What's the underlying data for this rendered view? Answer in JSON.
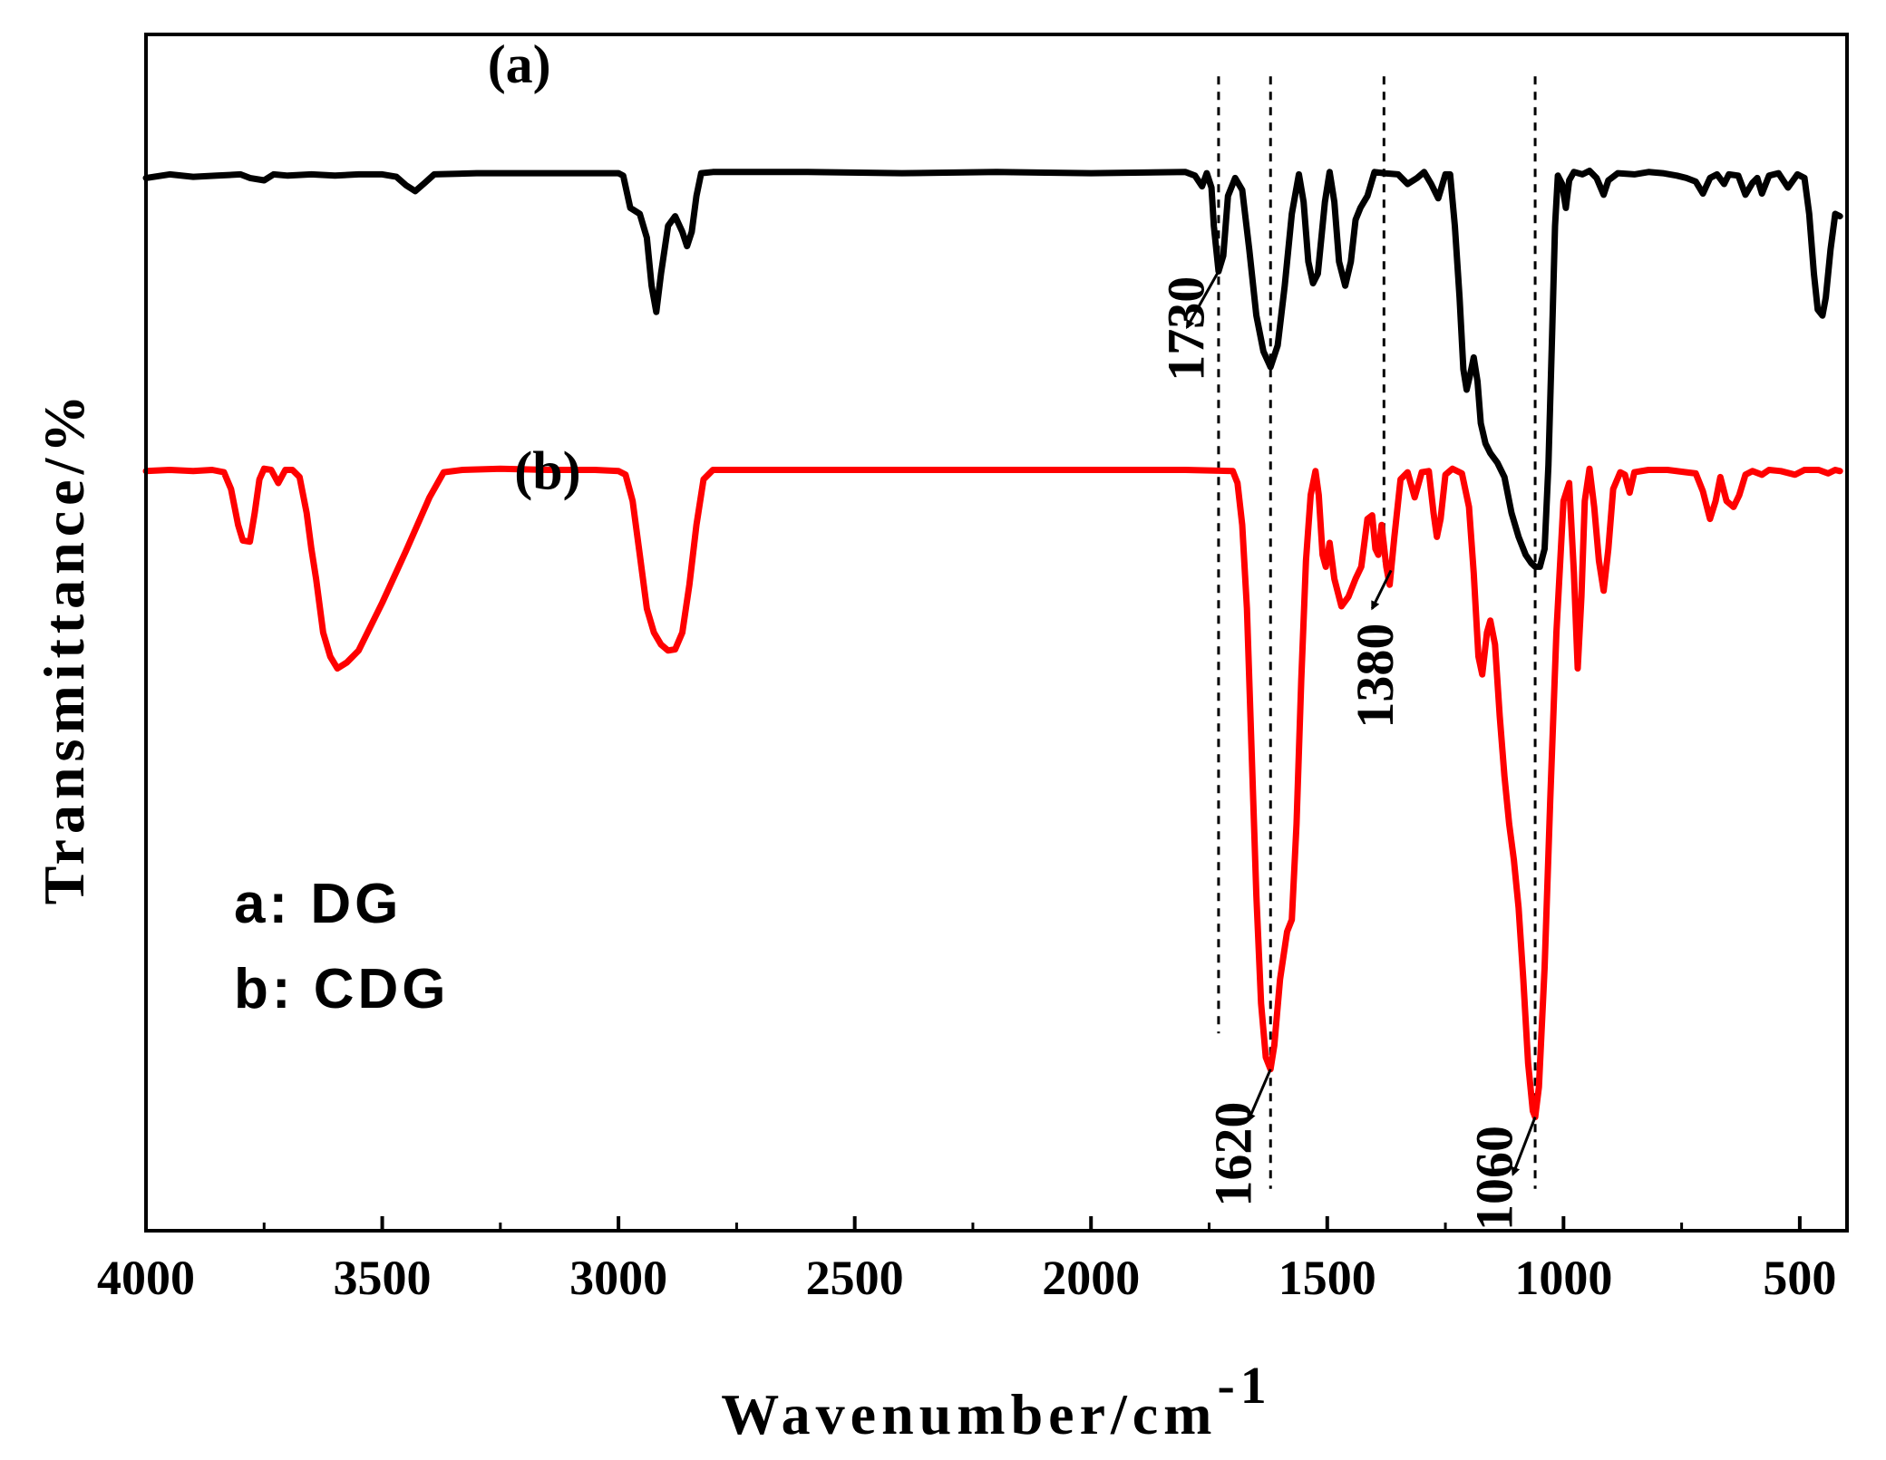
{
  "chart_data": {
    "type": "line",
    "title": "",
    "xlabel": "Wavenumber/cm",
    "xlabel_superscript": "-1",
    "ylabel": "Transmittance/%",
    "xlim": [
      4000,
      400
    ],
    "x_reversed": true,
    "ylim": [
      0,
      100
    ],
    "x_ticks": [
      4000,
      3500,
      3000,
      2500,
      2000,
      1500,
      1000,
      500
    ],
    "y_ticks": [],
    "grid": false,
    "legend": [
      {
        "text": "a: DG"
      },
      {
        "text": "b: CDG"
      }
    ],
    "legend_position": "bottom-left",
    "curve_labels": [
      {
        "text": "(a)",
        "x": 3210,
        "y": 96
      },
      {
        "text": "(b)",
        "x": 3150,
        "y": 62
      }
    ],
    "series": [
      {
        "name": "a",
        "color": "#000000",
        "points": [
          [
            4000,
            88
          ],
          [
            3950,
            88.3
          ],
          [
            3900,
            88.1
          ],
          [
            3850,
            88.2
          ],
          [
            3800,
            88.3
          ],
          [
            3780,
            88
          ],
          [
            3750,
            87.8
          ],
          [
            3730,
            88.3
          ],
          [
            3700,
            88.2
          ],
          [
            3650,
            88.3
          ],
          [
            3600,
            88.2
          ],
          [
            3550,
            88.3
          ],
          [
            3500,
            88.3
          ],
          [
            3470,
            88.1
          ],
          [
            3450,
            87.4
          ],
          [
            3430,
            86.9
          ],
          [
            3410,
            87.6
          ],
          [
            3390,
            88.3
          ],
          [
            3300,
            88.4
          ],
          [
            3100,
            88.4
          ],
          [
            3000,
            88.4
          ],
          [
            2990,
            88.2
          ],
          [
            2975,
            85.5
          ],
          [
            2955,
            85
          ],
          [
            2940,
            83
          ],
          [
            2930,
            79
          ],
          [
            2920,
            76.8
          ],
          [
            2910,
            80
          ],
          [
            2895,
            84
          ],
          [
            2880,
            84.8
          ],
          [
            2865,
            83.5
          ],
          [
            2855,
            82.3
          ],
          [
            2845,
            83.5
          ],
          [
            2835,
            86.5
          ],
          [
            2825,
            88.4
          ],
          [
            2800,
            88.5
          ],
          [
            2600,
            88.5
          ],
          [
            2400,
            88.4
          ],
          [
            2200,
            88.5
          ],
          [
            2000,
            88.4
          ],
          [
            1800,
            88.5
          ],
          [
            1780,
            88.2
          ],
          [
            1765,
            87.3
          ],
          [
            1755,
            88.4
          ],
          [
            1745,
            87.2
          ],
          [
            1740,
            84
          ],
          [
            1730,
            80.2
          ],
          [
            1720,
            81.5
          ],
          [
            1710,
            86.5
          ],
          [
            1695,
            88
          ],
          [
            1680,
            87
          ],
          [
            1665,
            82
          ],
          [
            1650,
            76.5
          ],
          [
            1635,
            73.5
          ],
          [
            1620,
            72.2
          ],
          [
            1605,
            74
          ],
          [
            1590,
            79
          ],
          [
            1575,
            85
          ],
          [
            1560,
            88.3
          ],
          [
            1550,
            86
          ],
          [
            1540,
            81
          ],
          [
            1530,
            79.2
          ],
          [
            1520,
            80
          ],
          [
            1505,
            86
          ],
          [
            1495,
            88.5
          ],
          [
            1485,
            86
          ],
          [
            1475,
            81
          ],
          [
            1462,
            79
          ],
          [
            1450,
            81
          ],
          [
            1440,
            84.5
          ],
          [
            1430,
            85.5
          ],
          [
            1415,
            86.5
          ],
          [
            1400,
            88.5
          ],
          [
            1380,
            88.4
          ],
          [
            1350,
            88.3
          ],
          [
            1330,
            87.5
          ],
          [
            1310,
            88
          ],
          [
            1295,
            88.5
          ],
          [
            1280,
            87.5
          ],
          [
            1265,
            86.3
          ],
          [
            1250,
            88.3
          ],
          [
            1240,
            88.3
          ],
          [
            1230,
            84
          ],
          [
            1220,
            78
          ],
          [
            1212,
            72
          ],
          [
            1205,
            70.3
          ],
          [
            1198,
            71.5
          ],
          [
            1190,
            73
          ],
          [
            1182,
            71
          ],
          [
            1175,
            67.5
          ],
          [
            1165,
            65.8
          ],
          [
            1155,
            65
          ],
          [
            1140,
            64.2
          ],
          [
            1125,
            63
          ],
          [
            1110,
            60
          ],
          [
            1095,
            58
          ],
          [
            1080,
            56.5
          ],
          [
            1068,
            55.8
          ],
          [
            1060,
            55.5
          ],
          [
            1050,
            55.5
          ],
          [
            1040,
            57
          ],
          [
            1032,
            64
          ],
          [
            1024,
            75
          ],
          [
            1018,
            84
          ],
          [
            1012,
            88.2
          ],
          [
            1003,
            87.5
          ],
          [
            995,
            85.5
          ],
          [
            988,
            87.8
          ],
          [
            978,
            88.5
          ],
          [
            960,
            88.3
          ],
          [
            945,
            88.6
          ],
          [
            930,
            88
          ],
          [
            915,
            86.6
          ],
          [
            905,
            87.8
          ],
          [
            885,
            88.4
          ],
          [
            850,
            88.3
          ],
          [
            820,
            88.5
          ],
          [
            790,
            88.4
          ],
          [
            760,
            88.2
          ],
          [
            740,
            88
          ],
          [
            720,
            87.7
          ],
          [
            705,
            86.7
          ],
          [
            690,
            88
          ],
          [
            675,
            88.3
          ],
          [
            660,
            87.5
          ],
          [
            650,
            88.3
          ],
          [
            630,
            88.2
          ],
          [
            615,
            86.6
          ],
          [
            600,
            87.6
          ],
          [
            590,
            88
          ],
          [
            580,
            86.7
          ],
          [
            565,
            88.2
          ],
          [
            545,
            88.4
          ],
          [
            525,
            87.2
          ],
          [
            505,
            88.3
          ],
          [
            490,
            88
          ],
          [
            480,
            85
          ],
          [
            470,
            80
          ],
          [
            462,
            77
          ],
          [
            452,
            76.5
          ],
          [
            445,
            78
          ],
          [
            435,
            82
          ],
          [
            425,
            85
          ],
          [
            415,
            84.8
          ]
        ]
      },
      {
        "name": "b",
        "color": "#ff0000",
        "points": [
          [
            4000,
            63.5
          ],
          [
            3950,
            63.6
          ],
          [
            3900,
            63.5
          ],
          [
            3860,
            63.6
          ],
          [
            3835,
            63.4
          ],
          [
            3820,
            62
          ],
          [
            3805,
            59
          ],
          [
            3795,
            57.7
          ],
          [
            3780,
            57.6
          ],
          [
            3770,
            60
          ],
          [
            3760,
            62.8
          ],
          [
            3750,
            63.7
          ],
          [
            3735,
            63.6
          ],
          [
            3720,
            62.5
          ],
          [
            3705,
            63.6
          ],
          [
            3690,
            63.6
          ],
          [
            3675,
            63
          ],
          [
            3660,
            60
          ],
          [
            3650,
            57
          ],
          [
            3640,
            54.5
          ],
          [
            3625,
            50
          ],
          [
            3610,
            48
          ],
          [
            3595,
            47
          ],
          [
            3575,
            47.5
          ],
          [
            3550,
            48.5
          ],
          [
            3500,
            52.5
          ],
          [
            3450,
            56.8
          ],
          [
            3400,
            61.3
          ],
          [
            3370,
            63.4
          ],
          [
            3330,
            63.6
          ],
          [
            3250,
            63.7
          ],
          [
            3150,
            63.6
          ],
          [
            3050,
            63.6
          ],
          [
            3000,
            63.5
          ],
          [
            2985,
            63.2
          ],
          [
            2970,
            61
          ],
          [
            2955,
            56.5
          ],
          [
            2940,
            52
          ],
          [
            2925,
            50
          ],
          [
            2910,
            49
          ],
          [
            2895,
            48.5
          ],
          [
            2880,
            48.6
          ],
          [
            2865,
            50
          ],
          [
            2850,
            54
          ],
          [
            2835,
            59
          ],
          [
            2820,
            62.8
          ],
          [
            2800,
            63.6
          ],
          [
            2600,
            63.6
          ],
          [
            2400,
            63.6
          ],
          [
            2200,
            63.6
          ],
          [
            2000,
            63.6
          ],
          [
            1800,
            63.6
          ],
          [
            1700,
            63.5
          ],
          [
            1690,
            62.5
          ],
          [
            1680,
            59
          ],
          [
            1670,
            52
          ],
          [
            1660,
            40
          ],
          [
            1650,
            28
          ],
          [
            1640,
            19
          ],
          [
            1630,
            14.5
          ],
          [
            1620,
            13.5
          ],
          [
            1612,
            15.5
          ],
          [
            1600,
            21
          ],
          [
            1585,
            25
          ],
          [
            1575,
            26
          ],
          [
            1565,
            34
          ],
          [
            1555,
            46
          ],
          [
            1545,
            56
          ],
          [
            1535,
            61.5
          ],
          [
            1525,
            63.5
          ],
          [
            1518,
            61.5
          ],
          [
            1510,
            56.5
          ],
          [
            1503,
            55.5
          ],
          [
            1495,
            57.5
          ],
          [
            1485,
            54.5
          ],
          [
            1470,
            52.2
          ],
          [
            1455,
            53
          ],
          [
            1440,
            54.5
          ],
          [
            1428,
            55.5
          ],
          [
            1415,
            59.5
          ],
          [
            1405,
            59.8
          ],
          [
            1398,
            57
          ],
          [
            1392,
            56.5
          ],
          [
            1385,
            59
          ],
          [
            1375,
            55.5
          ],
          [
            1368,
            54
          ],
          [
            1358,
            58
          ],
          [
            1345,
            62.8
          ],
          [
            1330,
            63.4
          ],
          [
            1315,
            61.3
          ],
          [
            1300,
            63.4
          ],
          [
            1285,
            63.5
          ],
          [
            1275,
            60
          ],
          [
            1268,
            58
          ],
          [
            1260,
            59.5
          ],
          [
            1250,
            63.2
          ],
          [
            1235,
            63.7
          ],
          [
            1215,
            63.3
          ],
          [
            1200,
            60.5
          ],
          [
            1190,
            55
          ],
          [
            1180,
            48
          ],
          [
            1172,
            46.5
          ],
          [
            1162,
            50
          ],
          [
            1155,
            51
          ],
          [
            1145,
            49
          ],
          [
            1135,
            43
          ],
          [
            1125,
            38
          ],
          [
            1115,
            34
          ],
          [
            1105,
            31
          ],
          [
            1095,
            27
          ],
          [
            1085,
            21
          ],
          [
            1075,
            14
          ],
          [
            1065,
            10
          ],
          [
            1060,
            9.5
          ],
          [
            1052,
            12
          ],
          [
            1040,
            22
          ],
          [
            1028,
            36
          ],
          [
            1015,
            50
          ],
          [
            1000,
            61
          ],
          [
            988,
            62.5
          ],
          [
            978,
            55
          ],
          [
            970,
            47
          ],
          [
            962,
            53
          ],
          [
            955,
            61
          ],
          [
            945,
            63.7
          ],
          [
            935,
            60.5
          ],
          [
            925,
            56
          ],
          [
            915,
            53.5
          ],
          [
            905,
            57
          ],
          [
            895,
            62
          ],
          [
            880,
            63.4
          ],
          [
            870,
            63.2
          ],
          [
            860,
            61.7
          ],
          [
            850,
            63.4
          ],
          [
            820,
            63.6
          ],
          [
            780,
            63.6
          ],
          [
            740,
            63.4
          ],
          [
            720,
            63.3
          ],
          [
            705,
            61.8
          ],
          [
            690,
            59.5
          ],
          [
            678,
            61
          ],
          [
            668,
            63
          ],
          [
            655,
            61
          ],
          [
            640,
            60.5
          ],
          [
            628,
            61.5
          ],
          [
            615,
            63.2
          ],
          [
            600,
            63.5
          ],
          [
            580,
            63.2
          ],
          [
            565,
            63.6
          ],
          [
            540,
            63.5
          ],
          [
            510,
            63.2
          ],
          [
            490,
            63.6
          ],
          [
            460,
            63.6
          ],
          [
            440,
            63.3
          ],
          [
            425,
            63.6
          ],
          [
            415,
            63.5
          ]
        ]
      }
    ],
    "reference_lines": [
      {
        "x": 1730,
        "y_from": 96.5,
        "y_to": 16.5
      },
      {
        "x": 1620,
        "y_from": 96.5,
        "y_to": 3.5
      },
      {
        "x": 1380,
        "y_from": 96.5,
        "y_to": 55.5
      },
      {
        "x": 1060,
        "y_from": 96.5,
        "y_to": 3.5
      }
    ],
    "annotations": [
      {
        "text": "1730",
        "peak_x": 1730,
        "peak_y": 80.2,
        "arrow_to_x": 1797,
        "arrow_to_y": 75.5,
        "label_x": 1800,
        "label_y": 71
      },
      {
        "text": "1620",
        "peak_x": 1620,
        "peak_y": 13.5,
        "arrow_to_x": 1667,
        "arrow_to_y": 9.2,
        "label_x": 1700,
        "label_y": 2
      },
      {
        "text": "1380",
        "peak_x": 1365,
        "peak_y": 55.2,
        "arrow_to_x": 1405,
        "arrow_to_y": 52,
        "label_x": 1400,
        "label_y": 42
      },
      {
        "text": "1060",
        "peak_x": 1060,
        "peak_y": 9.5,
        "arrow_to_x": 1107,
        "arrow_to_y": 4.7,
        "label_x": 1147,
        "label_y": 0
      }
    ]
  }
}
